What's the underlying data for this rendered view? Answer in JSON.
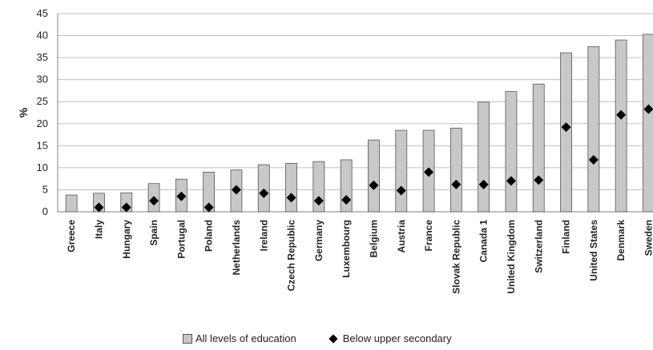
{
  "chart_data": {
    "type": "bar",
    "ylabel": "%",
    "ylim": [
      0,
      45
    ],
    "yticks": [
      0,
      5,
      10,
      15,
      20,
      25,
      30,
      35,
      40,
      45
    ],
    "grid": true,
    "legend_position": "bottom",
    "categories": [
      "Greece",
      "Italy",
      "Hungary",
      "Spain",
      "Portugal",
      "Poland",
      "Netherlands",
      "Ireland",
      "Czech Republic",
      "Germany",
      "Luxembourg",
      "Belgium",
      "Austria",
      "France",
      "Slovak Republic",
      "Canada 1",
      "United Kingdom",
      "Switzerland",
      "Finland",
      "United States",
      "Denmark",
      "Sweden"
    ],
    "series": [
      {
        "name": "All levels of education",
        "kind": "bar",
        "color": "#c8c8c8",
        "values": [
          3.8,
          4.2,
          4.3,
          6.4,
          7.4,
          9.0,
          9.5,
          10.7,
          11.0,
          11.4,
          11.8,
          16.3,
          18.5,
          18.5,
          19.0,
          24.9,
          27.3,
          29.0,
          36.1,
          37.5,
          39.0,
          40.3
        ]
      },
      {
        "name": "Below upper secondary",
        "kind": "marker",
        "color": "#000000",
        "values": [
          null,
          1.0,
          1.0,
          2.5,
          3.5,
          1.0,
          5.0,
          4.2,
          3.2,
          2.5,
          2.7,
          6.0,
          4.8,
          9.0,
          6.2,
          6.2,
          7.0,
          7.2,
          19.2,
          11.8,
          22.0,
          23.3
        ]
      }
    ]
  }
}
